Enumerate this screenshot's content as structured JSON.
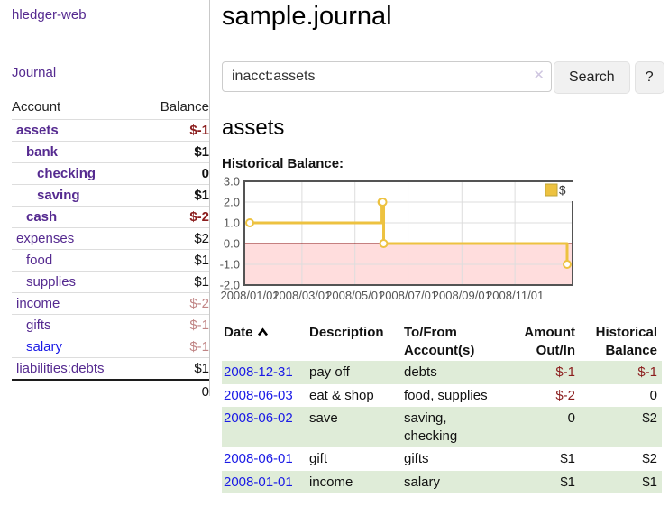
{
  "app": {
    "title": "hledger-web"
  },
  "sidebar": {
    "journal_label": "Journal",
    "accounts_table": {
      "headers": [
        "Account",
        "Balance"
      ],
      "rows": [
        {
          "name": "assets",
          "indent": 1,
          "bold": true,
          "link_color": "purple",
          "balance": "$-1",
          "balance_style": "neg-strong"
        },
        {
          "name": "bank",
          "indent": 2,
          "bold": true,
          "link_color": "purple",
          "balance": "$1",
          "balance_style": "normal"
        },
        {
          "name": "checking",
          "indent": 3,
          "bold": true,
          "link_color": "purple",
          "balance": "0",
          "balance_style": "normal"
        },
        {
          "name": "saving",
          "indent": 3,
          "bold": true,
          "link_color": "purple",
          "balance": "$1",
          "balance_style": "normal"
        },
        {
          "name": "cash",
          "indent": 2,
          "bold": true,
          "link_color": "purple",
          "balance": "$-2",
          "balance_style": "neg-strong"
        },
        {
          "name": "expenses",
          "indent": 1,
          "bold": false,
          "link_color": "purple",
          "balance": "$2",
          "balance_style": "normal"
        },
        {
          "name": "food",
          "indent": 2,
          "bold": false,
          "link_color": "purple",
          "balance": "$1",
          "balance_style": "normal"
        },
        {
          "name": "supplies",
          "indent": 2,
          "bold": false,
          "link_color": "purple",
          "balance": "$1",
          "balance_style": "normal"
        },
        {
          "name": "income",
          "indent": 1,
          "bold": false,
          "link_color": "purple",
          "balance": "$-2",
          "balance_style": "neg-muted"
        },
        {
          "name": "gifts",
          "indent": 2,
          "bold": false,
          "link_color": "purple",
          "balance": "$-1",
          "balance_style": "neg-muted"
        },
        {
          "name": "salary",
          "indent": 2,
          "bold": false,
          "link_color": "blue",
          "balance": "$-1",
          "balance_style": "neg-muted"
        },
        {
          "name": "liabilities:debts",
          "indent": 1,
          "bold": false,
          "link_color": "purple",
          "balance": "$1",
          "balance_style": "normal"
        }
      ],
      "total": "0"
    }
  },
  "main": {
    "title": "sample.journal",
    "search": {
      "value": "inacct:assets",
      "button_label": "Search",
      "help_label": "?"
    },
    "account_heading": "assets",
    "chart_heading": "Historical Balance:",
    "register": {
      "headers": [
        "Date",
        "Description",
        "To/From Account(s)",
        "Amount Out/In",
        "Historical Balance"
      ],
      "sort": "ascending",
      "rows": [
        {
          "date": "2008-12-31",
          "description": "pay off",
          "accounts": "debts",
          "amount": "$-1",
          "amount_negative": true,
          "balance": "$-1",
          "balance_negative": true
        },
        {
          "date": "2008-06-03",
          "description": "eat & shop",
          "accounts": "food, supplies",
          "amount": "$-2",
          "amount_negative": true,
          "balance": "0",
          "balance_negative": false
        },
        {
          "date": "2008-06-02",
          "description": "save",
          "accounts": "saving,\nchecking",
          "amount": "0",
          "amount_negative": false,
          "balance": "$2",
          "balance_negative": false
        },
        {
          "date": "2008-06-01",
          "description": "gift",
          "accounts": "gifts",
          "amount": "$1",
          "amount_negative": false,
          "balance": "$2",
          "balance_negative": false
        },
        {
          "date": "2008-01-01",
          "description": "income",
          "accounts": "salary",
          "amount": "$1",
          "amount_negative": false,
          "balance": "$1",
          "balance_negative": false
        }
      ]
    }
  },
  "icons": {
    "clear": "✕"
  },
  "colors": {
    "link_purple": "#552a90",
    "link_blue": "#1a1ae6",
    "negative_strong": "#8b1d1d",
    "negative_muted": "#c08484",
    "row_stripe_green": "#dfecd8",
    "separator": "#c9c9c9"
  },
  "chart_data": {
    "type": "line",
    "title": "Historical Balance:",
    "series": [
      {
        "name": "$",
        "color": "#edc240",
        "step": true,
        "points": [
          [
            "2008-01-01",
            1
          ],
          [
            "2008-06-01",
            2
          ],
          [
            "2008-06-02",
            2
          ],
          [
            "2008-06-03",
            0
          ],
          [
            "2008-12-31",
            -1
          ]
        ]
      }
    ],
    "x_ticks": [
      "2008/01/01",
      "2008/03/01",
      "2008/05/01",
      "2008/07/01",
      "2008/09/01",
      "2008/11/01"
    ],
    "y_ticks": [
      3.0,
      2.0,
      1.0,
      0.0,
      -1.0,
      -2.0
    ],
    "xlim": [
      "2008-01-01",
      "2008-12-31"
    ],
    "ylim": [
      -2,
      3
    ],
    "grid": true,
    "legend_position": "top-right",
    "grid_color": "#dddddd",
    "border_color": "#545454",
    "tick_label_color": "#545454",
    "negative_region_color": "#ffdddd",
    "zero_line_color": "#8b0000"
  }
}
